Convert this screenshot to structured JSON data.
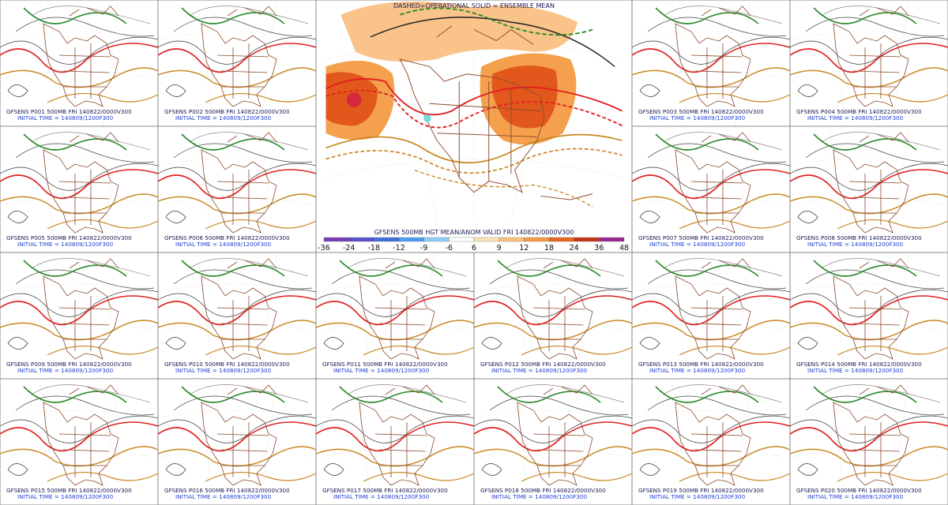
{
  "center": {
    "header": "DASHED=OPERATIONAL  SOLID = ENSEMBLE MEAN",
    "title": "GFSENS 500MB HGT MEAN/ANOM VALID FRI 140822/0000V300",
    "scale": {
      "labels": [
        -36,
        -24,
        -18,
        -12,
        -9,
        -6,
        6,
        9,
        12,
        18,
        24,
        36,
        48
      ],
      "colors": [
        "#7a3fb8",
        "#5b4fd0",
        "#3f6fe0",
        "#4f9fef",
        "#8fcff7",
        "#ffffff",
        "#fde3b8",
        "#fbc07a",
        "#f79a45",
        "#e8641f",
        "#c8361a",
        "#9b2a8f"
      ]
    }
  },
  "panels": [
    {
      "title": "GFSENS P001 500MB FRI 140822/0000V300",
      "init": "INITIAL TIME = 140809/1200F300"
    },
    {
      "title": "GFSENS P002 500MB FRI 140822/0000V300",
      "init": "INITIAL TIME = 140809/1200F300"
    },
    {
      "title": "GFSENS P003 500MB FRI 140822/0000V300",
      "init": "INITIAL TIME = 140809/1200F300"
    },
    {
      "title": "GFSENS P004 500MB FRI 140822/0000V300",
      "init": "INITIAL TIME = 140809/1200F300"
    },
    {
      "title": "GFSENS P005 500MB FRI 140822/0000V300",
      "init": "INITIAL TIME = 140809/1200F300"
    },
    {
      "title": "GFSENS P006 500MB FRI 140822/0000V300",
      "init": "INITIAL TIME = 140809/1200F300"
    },
    {
      "title": "GFSENS P007 500MB FRI 140822/0000V300",
      "init": "INITIAL TIME = 140809/1200F300"
    },
    {
      "title": "GFSENS P008 500MB FRI 140822/0000V300",
      "init": "INITIAL TIME = 140809/1200F300"
    },
    {
      "title": "GFSENS P009 500MB FRI 140822/0000V300",
      "init": "INITIAL TIME = 140809/1200F300"
    },
    {
      "title": "GFSENS P010 500MB FRI 140822/0000V300",
      "init": "INITIAL TIME = 140809/1200F300"
    },
    {
      "title": "GFSENS P011 500MB FRI 140822/0000V300",
      "init": "INITIAL TIME = 140809/1200F300"
    },
    {
      "title": "GFSENS P012 500MB FRI 140822/0000V300",
      "init": "INITIAL TIME = 140809/1200F300"
    },
    {
      "title": "GFSENS P013 500MB FRI 140822/0000V300",
      "init": "INITIAL TIME = 140809/1200F300"
    },
    {
      "title": "GFSENS P014 500MB FRI 140822/0000V300",
      "init": "INITIAL TIME = 140809/1200F300"
    },
    {
      "title": "GFSENS P015 500MB FRI 140822/0000V300",
      "init": "INITIAL TIME = 140809/1200F300"
    },
    {
      "title": "GFSENS P016 500MB FRI 140822/0000V300",
      "init": "INITIAL TIME = 140809/1200F300"
    },
    {
      "title": "GFSENS P017 500MB FRI 140822/0000V300",
      "init": "INITIAL TIME = 140809/1200F300"
    },
    {
      "title": "GFSENS P018 500MB FRI 140822/0000V300",
      "init": "INITIAL TIME = 140809/1200F300"
    },
    {
      "title": "GFSENS P019 500MB FRI 140822/0000V300",
      "init": "INITIAL TIME = 140809/1200F300"
    },
    {
      "title": "GFSENS P020 500MB FRI 140822/0000V300",
      "init": "INITIAL TIME = 140809/1200F300"
    }
  ]
}
